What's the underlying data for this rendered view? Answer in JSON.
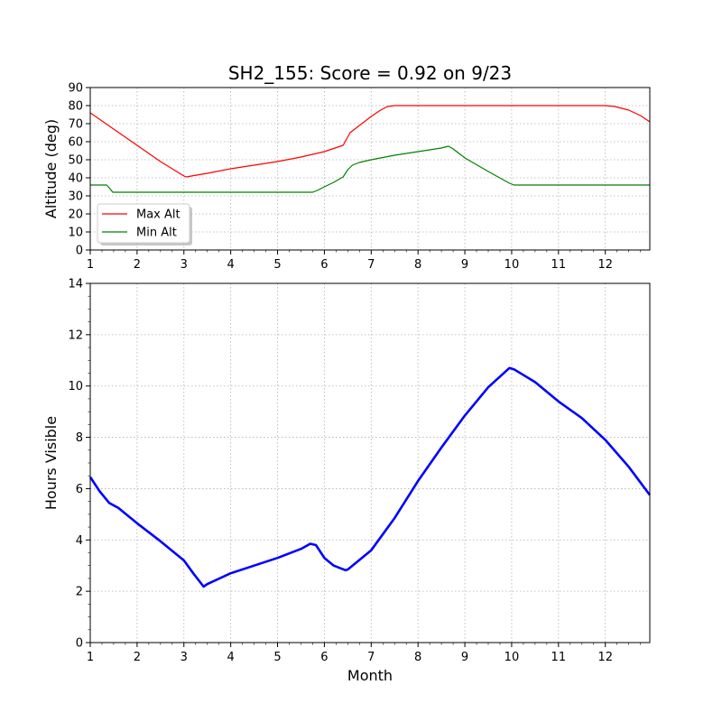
{
  "title": "SH2_155: Score = 0.92 on 9/23",
  "chart_data": [
    {
      "type": "line",
      "ylabel": "Altitude (deg)",
      "xlabel": "",
      "xlim": [
        1,
        12.95
      ],
      "ylim": [
        0,
        90
      ],
      "xticks": [
        1,
        2,
        3,
        4,
        5,
        6,
        7,
        8,
        9,
        10,
        11,
        12
      ],
      "yticks": [
        0,
        10,
        20,
        30,
        40,
        50,
        60,
        70,
        80,
        90
      ],
      "grid": true,
      "legend": "lower-left",
      "series": [
        {
          "name": "Max Alt",
          "color": "#ff0000",
          "x": [
            1.0,
            1.5,
            2.0,
            2.5,
            3.0,
            3.05,
            3.5,
            4.0,
            4.5,
            5.0,
            5.5,
            6.0,
            6.4,
            6.55,
            6.75,
            7.0,
            7.2,
            7.35,
            7.5,
            8.0,
            9.0,
            10.0,
            11.0,
            12.0,
            12.2,
            12.5,
            12.75,
            12.95
          ],
          "y": [
            76,
            67,
            58,
            49,
            41,
            40.5,
            42.5,
            45,
            47,
            49,
            51.5,
            54.5,
            58,
            65,
            69,
            74,
            77.5,
            79.5,
            80,
            80,
            80,
            80,
            80,
            80,
            79.5,
            77.5,
            74.5,
            71
          ]
        },
        {
          "name": "Min Alt",
          "color": "#008000",
          "x": [
            1.0,
            1.35,
            1.42,
            1.48,
            2.0,
            3.0,
            4.0,
            5.0,
            5.75,
            5.85,
            6.0,
            6.2,
            6.4,
            6.5,
            6.6,
            6.75,
            7.0,
            7.5,
            8.0,
            8.5,
            8.65,
            8.75,
            9.0,
            9.5,
            9.95,
            10.05,
            10.5,
            11.0,
            12.0,
            12.95
          ],
          "y": [
            36,
            36,
            34,
            32,
            32,
            32,
            32,
            32,
            32,
            33,
            35,
            37.5,
            40.5,
            44.5,
            47,
            48.5,
            50,
            52.5,
            54.5,
            56.5,
            57.5,
            56,
            51,
            43.5,
            37,
            36,
            36,
            36,
            36,
            36
          ]
        }
      ]
    },
    {
      "type": "line",
      "ylabel": "Hours Visible",
      "xlabel": "Month",
      "xlim": [
        1,
        12.95
      ],
      "ylim": [
        0,
        14
      ],
      "xticks": [
        1,
        2,
        3,
        4,
        5,
        6,
        7,
        8,
        9,
        10,
        11,
        12
      ],
      "yticks": [
        0,
        2,
        4,
        6,
        8,
        10,
        12,
        14
      ],
      "grid": true,
      "series": [
        {
          "color": "#0000ff",
          "x": [
            1.0,
            1.2,
            1.4,
            1.6,
            2.0,
            2.5,
            3.0,
            3.2,
            3.42,
            3.5,
            4.0,
            4.5,
            5.0,
            5.5,
            5.7,
            5.82,
            6.0,
            6.2,
            6.45,
            6.5,
            7.0,
            7.5,
            8.0,
            8.5,
            9.0,
            9.5,
            9.95,
            10.05,
            10.5,
            11.0,
            11.5,
            12.0,
            12.5,
            12.95
          ],
          "y": [
            6.45,
            5.9,
            5.45,
            5.25,
            4.65,
            3.95,
            3.2,
            2.7,
            2.18,
            2.28,
            2.7,
            3.0,
            3.3,
            3.65,
            3.85,
            3.8,
            3.3,
            3.0,
            2.82,
            2.85,
            3.6,
            4.85,
            6.3,
            7.6,
            8.85,
            9.95,
            10.7,
            10.65,
            10.15,
            9.4,
            8.75,
            7.9,
            6.85,
            5.75
          ]
        }
      ]
    }
  ]
}
